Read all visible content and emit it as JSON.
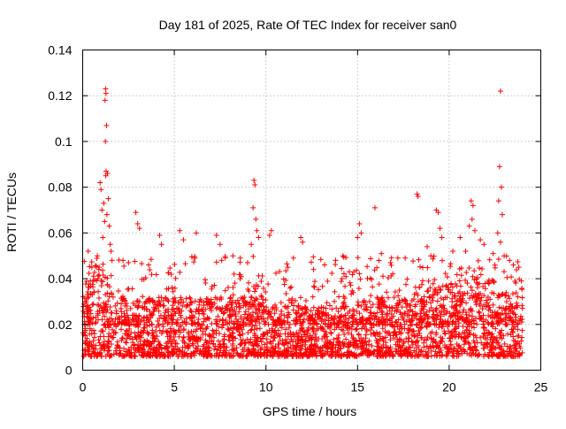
{
  "chart_data": {
    "type": "scatter",
    "title": "Day 181 of 2025, Rate Of TEC Index for receiver san0",
    "xlabel": "GPS time / hours",
    "ylabel": "ROTI / TECUs",
    "xlim": [
      0,
      25
    ],
    "ylim": [
      0,
      0.14
    ],
    "xticks": [
      0,
      5,
      10,
      15,
      20,
      25
    ],
    "xtick_labels": [
      "0",
      "5",
      "10",
      "15",
      "20",
      "25"
    ],
    "yticks": [
      0,
      0.02,
      0.04,
      0.06,
      0.08,
      0.1,
      0.12,
      0.14
    ],
    "ytick_labels": [
      "0",
      "0.02",
      "0.04",
      "0.06",
      "0.08",
      "0.1",
      "0.12",
      "0.14"
    ],
    "grid": true,
    "marker": "+",
    "color": "#ff0000",
    "series": [
      {
        "name": "ROTI",
        "x": [
          1.25,
          1.27,
          1.22,
          1.3,
          1.24,
          1.28,
          1.26,
          1.35,
          1.4,
          1.45,
          0.95,
          1.0,
          1.05,
          1.15,
          1.2,
          1.1,
          1.55,
          1.6,
          1.5,
          0.8,
          0.9,
          1.32,
          22.8,
          22.75,
          22.85,
          22.7,
          22.9,
          22.65,
          22.8,
          23.0,
          9.35,
          9.4,
          9.3,
          9.45,
          9.5,
          9.6,
          9.2,
          18.25,
          18.3,
          19.3,
          19.4,
          19.5,
          19.6,
          21.2,
          21.3,
          21.25,
          21.4,
          21.1,
          15.95,
          15.1,
          15.2,
          15.0,
          2.9,
          3.0,
          3.1,
          4.2,
          4.3,
          5.3,
          5.5,
          6.2,
          7.3,
          7.5,
          10.2,
          10.3,
          11.9,
          12.0,
          11.5,
          13.8,
          14.2,
          16.3,
          17.2,
          18.8,
          20.2,
          20.6,
          21.7,
          21.9,
          22.4,
          23.3,
          23.5,
          0.3,
          0.5,
          2.2,
          2.5,
          3.6,
          8.2,
          8.6,
          9.0,
          11.2,
          12.6,
          13.2,
          14.8,
          16.8,
          17.6,
          19.0,
          20.9,
          23.8
        ],
        "y": [
          0.123,
          0.121,
          0.118,
          0.107,
          0.1,
          0.087,
          0.085,
          0.086,
          0.075,
          0.063,
          0.082,
          0.079,
          0.07,
          0.073,
          0.065,
          0.058,
          0.052,
          0.048,
          0.055,
          0.05,
          0.045,
          0.068,
          0.122,
          0.089,
          0.08,
          0.074,
          0.068,
          0.06,
          0.056,
          0.05,
          0.083,
          0.081,
          0.071,
          0.066,
          0.061,
          0.058,
          0.055,
          0.077,
          0.076,
          0.07,
          0.069,
          0.062,
          0.058,
          0.074,
          0.072,
          0.066,
          0.061,
          0.063,
          0.071,
          0.064,
          0.06,
          0.058,
          0.069,
          0.064,
          0.062,
          0.059,
          0.055,
          0.061,
          0.057,
          0.06,
          0.059,
          0.055,
          0.059,
          0.061,
          0.058,
          0.056,
          0.049,
          0.048,
          0.05,
          0.051,
          0.049,
          0.054,
          0.052,
          0.058,
          0.057,
          0.055,
          0.051,
          0.048,
          0.046,
          0.052,
          0.045,
          0.048,
          0.047,
          0.046,
          0.05,
          0.049,
          0.047,
          0.045,
          0.044,
          0.046,
          0.043,
          0.047,
          0.049,
          0.05,
          0.052,
          0.045
        ]
      }
    ]
  }
}
